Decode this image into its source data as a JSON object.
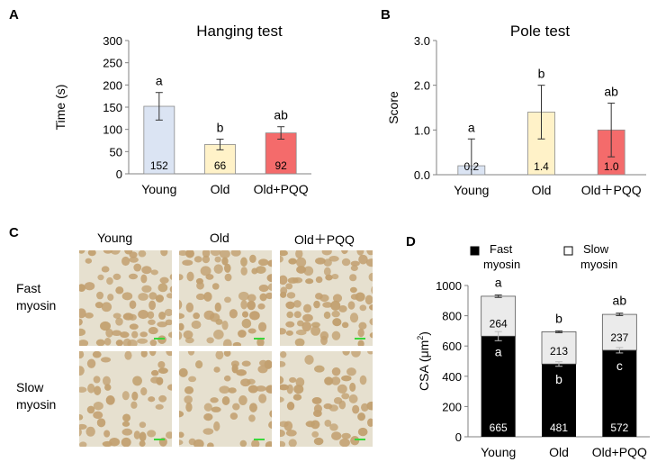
{
  "panels": {
    "A": "A",
    "B": "B",
    "C": "C",
    "D": "D"
  },
  "micrographs": {
    "columns": [
      "Young",
      "Old",
      "Old＋PQQ"
    ],
    "rows": [
      {
        "line1": "Fast",
        "line2": "myosin"
      },
      {
        "line1": "Slow",
        "line2": "myosin"
      }
    ],
    "stain_color": "#c2a070",
    "background_color": "#e6e0cf",
    "scalebar_color": "#3bd63b"
  },
  "chart_data": [
    {
      "type": "bar",
      "panel": "A",
      "title": "Hanging test",
      "ylabel": "Time (s)",
      "xlabel": "",
      "ylim": [
        0,
        300
      ],
      "yticks": [
        0,
        50,
        100,
        150,
        200,
        250,
        300
      ],
      "ytick_labels": [
        "0",
        "50",
        "100",
        "150",
        "200",
        "250",
        "300"
      ],
      "categories": [
        "Young",
        "Old",
        "Old+PQQ"
      ],
      "values": [
        152,
        66,
        92
      ],
      "value_labels": [
        "152",
        "66",
        "92"
      ],
      "errors": [
        31,
        12,
        14
      ],
      "significance": [
        "a",
        "b",
        "ab"
      ],
      "colors": [
        "#dbe4f3",
        "#fff2c8",
        "#f46b6b"
      ]
    },
    {
      "type": "bar",
      "panel": "B",
      "title": "Pole test",
      "ylabel": "Score",
      "xlabel": "",
      "ylim": [
        0,
        3
      ],
      "yticks": [
        0,
        1,
        2,
        3
      ],
      "ytick_labels": [
        "0.0",
        "1.0",
        "2.0",
        "3.0"
      ],
      "categories": [
        "Young",
        "Old",
        "Old＋PQQ"
      ],
      "values": [
        0.2,
        1.4,
        1.0
      ],
      "value_labels": [
        "0.2",
        "1.4",
        "1.0"
      ],
      "errors": [
        0.6,
        0.6,
        0.6
      ],
      "significance": [
        "a",
        "b",
        "ab"
      ],
      "colors": [
        "#dbe4f3",
        "#fff2c8",
        "#f46b6b"
      ]
    },
    {
      "type": "bar",
      "stacked": true,
      "panel": "D",
      "ylabel_main": "CSA",
      "ylabel_unit": "(μm",
      "ylabel_sup": "2",
      "ylabel_close": ")",
      "xlabel": "",
      "ylim": [
        0,
        1000
      ],
      "yticks": [
        0,
        200,
        400,
        600,
        800,
        1000
      ],
      "ytick_labels": [
        "0",
        "200",
        "400",
        "600",
        "800",
        "1000"
      ],
      "categories": [
        "Young",
        "Old",
        "Old+PQQ"
      ],
      "series": [
        {
          "name_line1": "Fast",
          "name_line2": "myosin",
          "values": [
            665,
            481,
            572
          ],
          "value_labels": [
            "665",
            "481",
            "572"
          ],
          "errors": [
            30,
            15,
            18
          ],
          "significance": [
            "a",
            "b",
            "c"
          ],
          "color": "#000000"
        },
        {
          "name_line1": "Slow",
          "name_line2": "myosin",
          "values": [
            264,
            213,
            237
          ],
          "value_labels": [
            "264",
            "213",
            "237"
          ],
          "errors": [
            8,
            6,
            8
          ],
          "color": "#ebebeb"
        }
      ],
      "total_significance": [
        "a",
        "b",
        "ab"
      ],
      "legend_position": "top"
    }
  ]
}
